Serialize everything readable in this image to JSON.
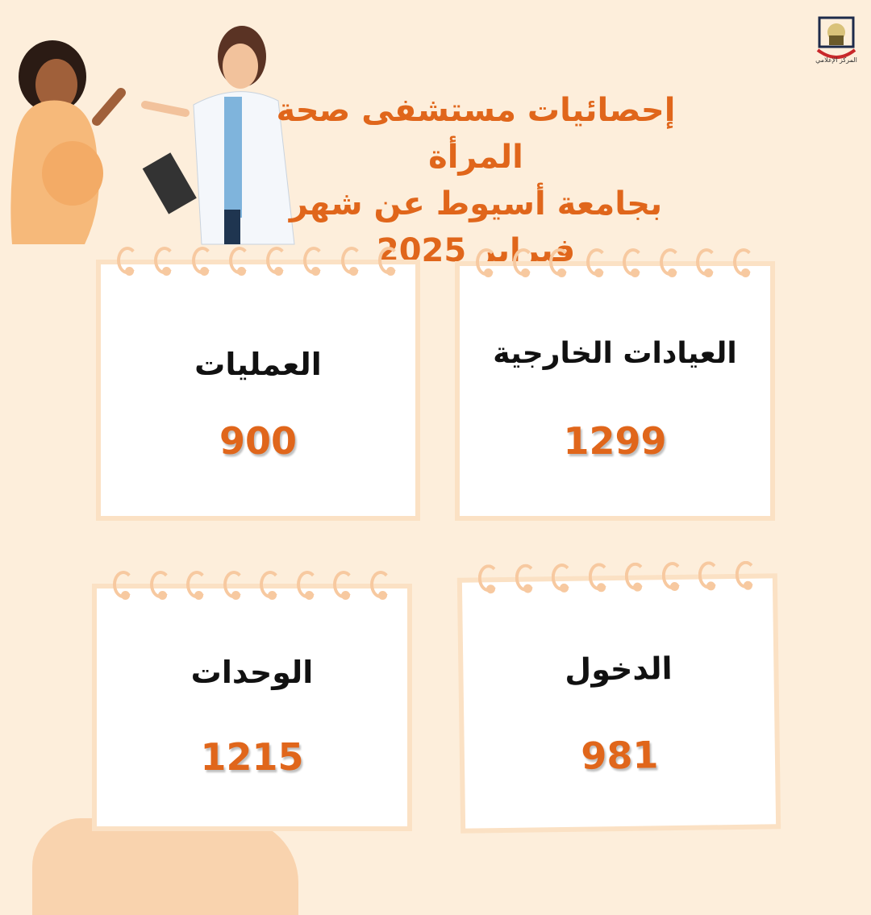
{
  "logo": {
    "text": "المركز الإعلامي"
  },
  "title": {
    "line1": "إحصائيات مستشفى صحة المرأة",
    "line2": "بجامعة أسيوط عن شهر",
    "line3": "فبراير 2025"
  },
  "cards": [
    {
      "label": "العيادات الخارجية",
      "value": "1299"
    },
    {
      "label": "العمليات",
      "value": "900"
    },
    {
      "label": "الدخول",
      "value": "981"
    },
    {
      "label": "الوحدات",
      "value": "1215"
    }
  ],
  "colors": {
    "background": "#fdeedb",
    "accent": "#e0661b",
    "ring": "#f7c9a0"
  }
}
